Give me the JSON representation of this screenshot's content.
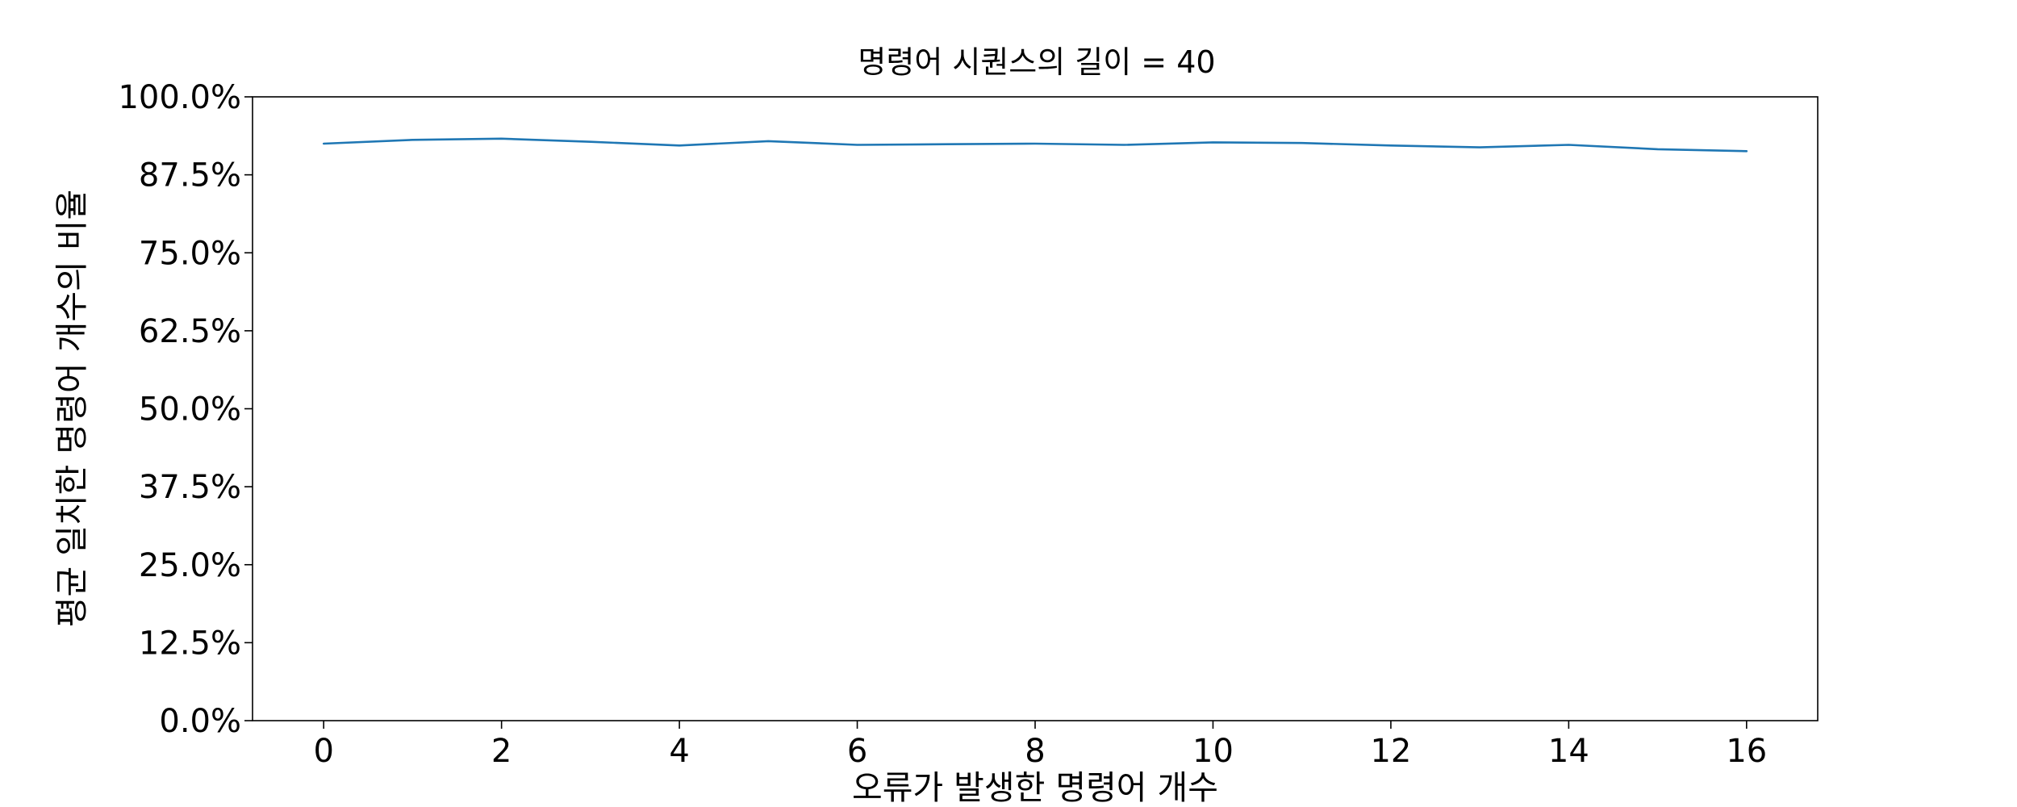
{
  "chart_data": {
    "type": "line",
    "title": "명령어 시퀀스의 길이 = 40",
    "xlabel": "오류가 발생한 명령어 개수",
    "ylabel": "평균 일치한 명령어 개수의 비율",
    "xlim": [
      -0.8,
      16.8
    ],
    "ylim": [
      0,
      100
    ],
    "x_ticks": [
      0,
      2,
      4,
      6,
      8,
      10,
      12,
      14,
      16
    ],
    "x_tick_labels": [
      "0",
      "2",
      "4",
      "6",
      "8",
      "10",
      "12",
      "14",
      "16"
    ],
    "y_ticks": [
      0,
      12.5,
      25,
      37.5,
      50,
      62.5,
      75,
      87.5,
      100
    ],
    "y_tick_labels": [
      "0.0%",
      "12.5%",
      "25.0%",
      "37.5%",
      "50.0%",
      "62.5%",
      "75.0%",
      "87.5%",
      "100.0%"
    ],
    "grid": false,
    "legend": "none",
    "series": [
      {
        "color": "#1f77b4",
        "x": [
          0,
          1,
          2,
          3,
          4,
          5,
          6,
          7,
          8,
          9,
          10,
          11,
          12,
          13,
          14,
          15,
          16
        ],
        "values": [
          92.5,
          93.1,
          93.3,
          92.8,
          92.2,
          92.9,
          92.3,
          92.4,
          92.5,
          92.3,
          92.7,
          92.6,
          92.2,
          91.9,
          92.3,
          91.6,
          91.3
        ]
      }
    ]
  }
}
